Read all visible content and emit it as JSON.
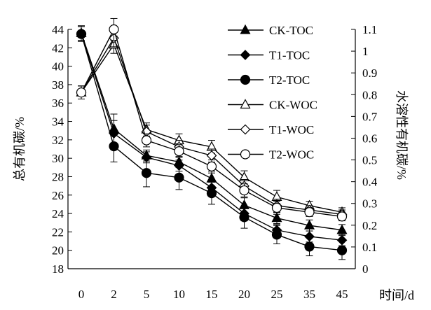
{
  "chart_data": {
    "type": "line",
    "categories": [
      "0",
      "2",
      "5",
      "10",
      "15",
      "20",
      "25",
      "35",
      "45"
    ],
    "xlabel": "时间/d",
    "ylabel_left": "总有机碳/%",
    "ylabel_right": "水溶性有机碳/%",
    "ylim_left": [
      18,
      44
    ],
    "yticks_left": [
      "18",
      "20",
      "22",
      "24",
      "26",
      "28",
      "30",
      "32",
      "34",
      "36",
      "38",
      "40",
      "42",
      "44"
    ],
    "ylim_right": [
      0,
      1.1
    ],
    "yticks_right": [
      "0",
      "0.1",
      "0.2",
      "0.3",
      "0.4",
      "0.5",
      "0.6",
      "0.7",
      "0.8",
      "0.9",
      "1",
      "1.1"
    ],
    "grid": false,
    "legend_position": "top-right",
    "series": [
      {
        "name": "CK-TOC",
        "axis": "left",
        "marker": "triangle",
        "filled": true,
        "values": [
          43.6,
          33.2,
          30.3,
          29.6,
          27.8,
          24.9,
          23.5,
          22.7,
          22.2
        ],
        "errors": [
          0.8,
          1.6,
          0.6,
          0.6,
          0.8,
          0.8,
          0.6,
          0.6,
          0.6
        ]
      },
      {
        "name": "T1-TOC",
        "axis": "left",
        "marker": "diamond",
        "filled": true,
        "values": [
          43.5,
          32.7,
          30.1,
          29.2,
          26.8,
          24.0,
          22.2,
          21.5,
          21.1
        ],
        "errors": [
          0.8,
          1.4,
          0.6,
          0.6,
          0.8,
          0.8,
          0.6,
          0.6,
          0.6
        ]
      },
      {
        "name": "T2-TOC",
        "axis": "left",
        "marker": "circle",
        "filled": true,
        "values": [
          43.5,
          31.3,
          28.4,
          27.9,
          26.2,
          23.6,
          21.7,
          20.4,
          20.0
        ],
        "errors": [
          0.8,
          1.7,
          1.5,
          1.3,
          1.2,
          1.2,
          1.0,
          1.0,
          1.0
        ]
      },
      {
        "name": "CK-WOC",
        "axis": "right",
        "marker": "triangle",
        "filled": false,
        "values": [
          0.81,
          1.03,
          0.64,
          0.59,
          0.56,
          0.42,
          0.33,
          0.29,
          0.26
        ],
        "errors": [
          0.03,
          0.04,
          0.03,
          0.03,
          0.03,
          0.03,
          0.03,
          0.02,
          0.02
        ]
      },
      {
        "name": "T1-WOC",
        "axis": "right",
        "marker": "diamond",
        "filled": false,
        "values": [
          0.81,
          1.06,
          0.63,
          0.56,
          0.52,
          0.38,
          0.29,
          0.27,
          0.25
        ],
        "errors": [
          0.03,
          0.04,
          0.03,
          0.03,
          0.03,
          0.03,
          0.03,
          0.02,
          0.02
        ]
      },
      {
        "name": "T2-WOC",
        "axis": "right",
        "marker": "circle",
        "filled": false,
        "values": [
          0.81,
          1.1,
          0.59,
          0.54,
          0.47,
          0.36,
          0.28,
          0.26,
          0.24
        ],
        "errors": [
          0.03,
          0.05,
          0.03,
          0.03,
          0.03,
          0.03,
          0.03,
          0.02,
          0.02
        ]
      }
    ]
  }
}
